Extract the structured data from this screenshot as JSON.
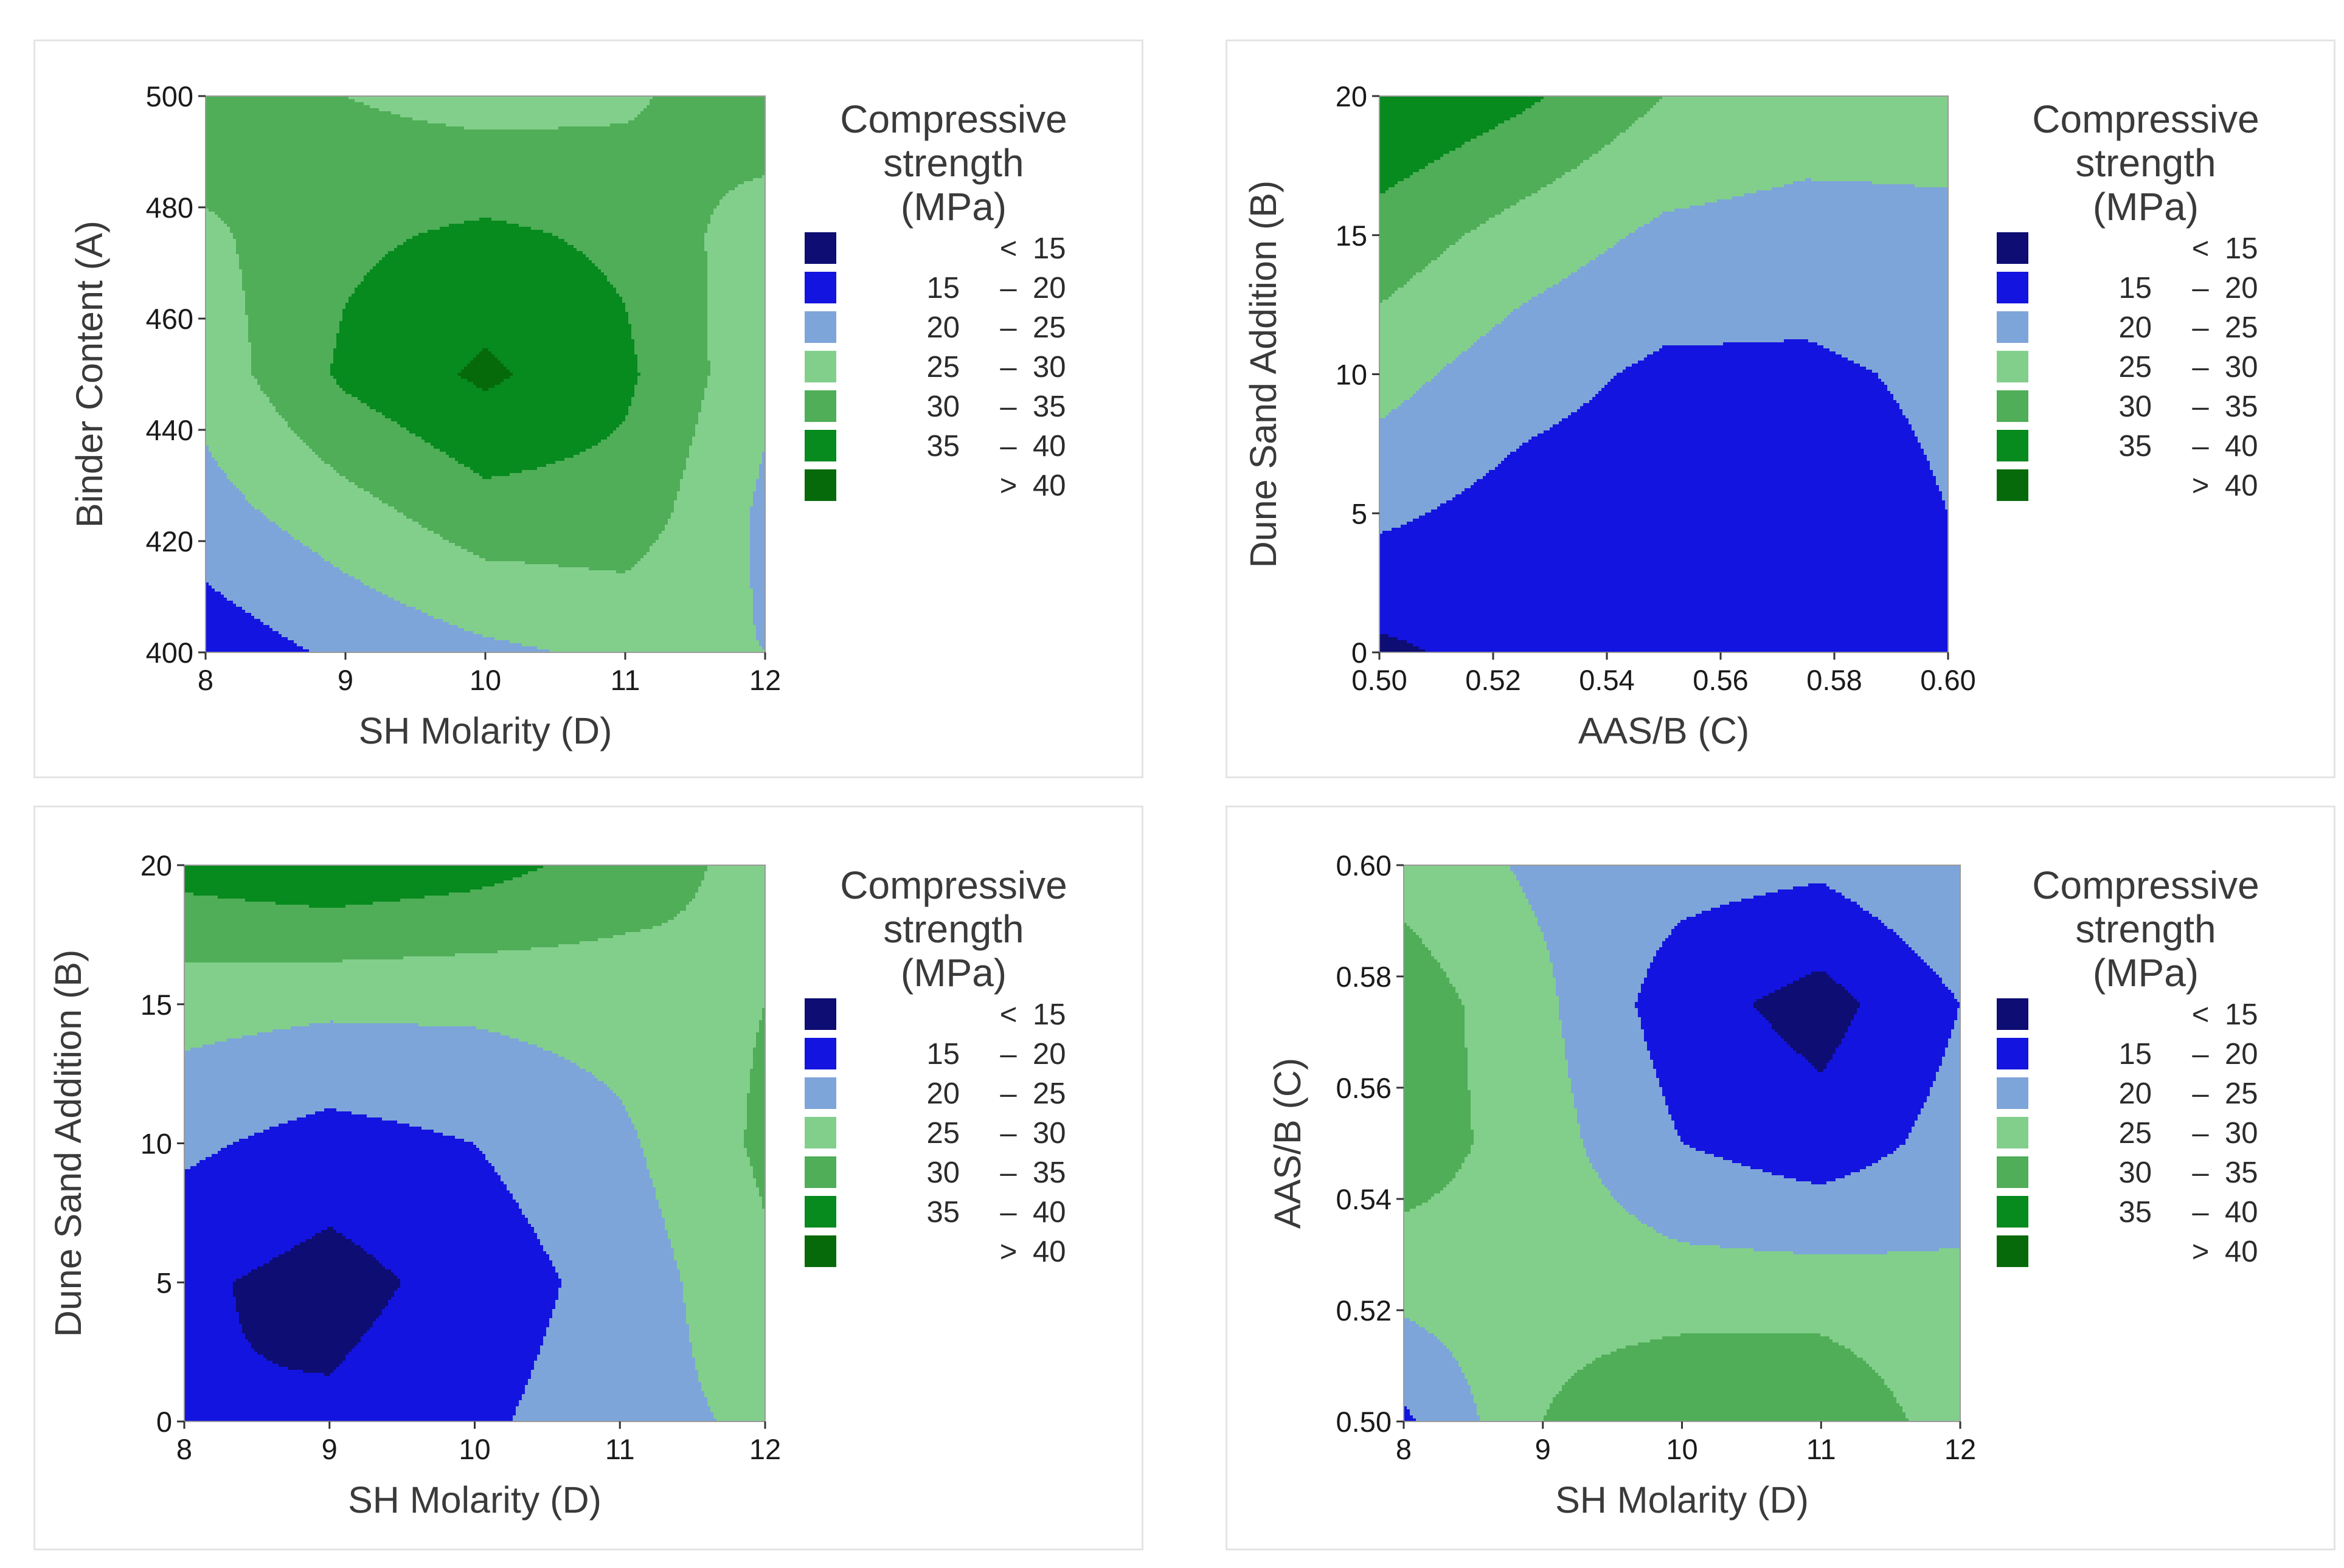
{
  "chart_data": [
    {
      "type": "heatmap",
      "subtype": "contour",
      "xlabel": "SH Molarity (D)",
      "ylabel": "Binder Content (A)",
      "xlim": [
        8,
        12
      ],
      "ylim": [
        400,
        500
      ],
      "x_ticks": [
        "8",
        "9",
        "10",
        "11",
        "12"
      ],
      "y_ticks": [
        "400",
        "420",
        "440",
        "460",
        "480",
        "500"
      ],
      "center_x": 10,
      "center_y": 454,
      "surface": [
        [
          17,
          21,
          24,
          26,
          25
        ],
        [
          23,
          28,
          33,
          33,
          24
        ],
        [
          27,
          36,
          41,
          36,
          26
        ],
        [
          29,
          34,
          36,
          34,
          27
        ],
        [
          34,
          30,
          28,
          29,
          34
        ]
      ],
      "legend": {
        "title": "Compressive strength (MPa)",
        "placement": "right",
        "bins": [
          {
            "from": "<",
            "to": "15",
            "color": "#0d0d73"
          },
          {
            "from": "15",
            "to": "20",
            "color": "#1414e0"
          },
          {
            "from": "20",
            "to": "25",
            "color": "#7da5d9"
          },
          {
            "from": "25",
            "to": "30",
            "color": "#82cf8c"
          },
          {
            "from": "30",
            "to": "35",
            "color": "#4fae57"
          },
          {
            "from": "35",
            "to": "40",
            "color": "#078a1e"
          },
          {
            "from": ">",
            "to": "40",
            "color": "#066a0a"
          }
        ]
      }
    },
    {
      "type": "heatmap",
      "subtype": "contour",
      "xlabel": "AAS/B (C)",
      "ylabel": "Dune Sand Addition (B)",
      "xlim": [
        0.5,
        0.6
      ],
      "ylim": [
        0,
        20
      ],
      "x_ticks": [
        "0.50",
        "0.52",
        "0.54",
        "0.56",
        "0.58",
        "0.60"
      ],
      "y_ticks": [
        "0",
        "5",
        "10",
        "15",
        "20"
      ],
      "center_x": 0.565,
      "center_y": 7,
      "surface": [
        [
          14,
          17,
          19,
          19,
          20
        ],
        [
          21,
          18,
          17,
          17,
          20
        ],
        [
          27,
          22,
          19,
          19,
          21
        ],
        [
          33,
          28,
          24,
          23,
          24
        ],
        [
          40,
          36,
          30,
          28,
          27
        ]
      ],
      "legend": {
        "title": "Compressive strength (MPa)",
        "placement": "right",
        "bins": [
          {
            "from": "<",
            "to": "15",
            "color": "#0d0d73"
          },
          {
            "from": "15",
            "to": "20",
            "color": "#1414e0"
          },
          {
            "from": "20",
            "to": "25",
            "color": "#7da5d9"
          },
          {
            "from": "25",
            "to": "30",
            "color": "#82cf8c"
          },
          {
            "from": "30",
            "to": "35",
            "color": "#4fae57"
          },
          {
            "from": "35",
            "to": "40",
            "color": "#078a1e"
          },
          {
            "from": ">",
            "to": "40",
            "color": "#066a0a"
          }
        ]
      }
    },
    {
      "type": "heatmap",
      "subtype": "contour",
      "xlabel": "SH Molarity (D)",
      "ylabel": "Dune Sand Addition (B)",
      "xlim": [
        8,
        12
      ],
      "ylim": [
        0,
        20
      ],
      "x_ticks": [
        "8",
        "9",
        "10",
        "11",
        "12"
      ],
      "y_ticks": [
        "0",
        "5",
        "10",
        "15",
        "20"
      ],
      "center_x": 9.5,
      "center_y": 5,
      "surface": [
        [
          15,
          16,
          19,
          23,
          26
        ],
        [
          16,
          13,
          17,
          22,
          29
        ],
        [
          21,
          18,
          20,
          24,
          31
        ],
        [
          27,
          26,
          26,
          27,
          30
        ],
        [
          37,
          39,
          37,
          33,
          28
        ]
      ],
      "legend": {
        "title": "Compressive strength (MPa)",
        "placement": "right",
        "bins": [
          {
            "from": "<",
            "to": "15",
            "color": "#0d0d73"
          },
          {
            "from": "15",
            "to": "20",
            "color": "#1414e0"
          },
          {
            "from": "20",
            "to": "25",
            "color": "#7da5d9"
          },
          {
            "from": "25",
            "to": "30",
            "color": "#82cf8c"
          },
          {
            "from": "30",
            "to": "35",
            "color": "#4fae57"
          },
          {
            "from": "35",
            "to": "40",
            "color": "#078a1e"
          },
          {
            "from": ">",
            "to": "40",
            "color": "#066a0a"
          }
        ]
      }
    },
    {
      "type": "heatmap",
      "subtype": "contour",
      "xlabel": "SH Molarity (D)",
      "ylabel": "AAS/B (C)",
      "xlim": [
        8,
        12
      ],
      "ylim": [
        0.5,
        0.6
      ],
      "x_ticks": [
        "8",
        "9",
        "10",
        "11",
        "12"
      ],
      "y_ticks": [
        "0.50",
        "0.52",
        "0.54",
        "0.56",
        "0.58",
        "0.60"
      ],
      "center_x": 10.55,
      "center_y": 0.566,
      "surface": [
        [
          19,
          30,
          35,
          35,
          27
        ],
        [
          27,
          28,
          27,
          27,
          26
        ],
        [
          33,
          27,
          20,
          17,
          22
        ],
        [
          33,
          26,
          17,
          13,
          20
        ],
        [
          28,
          24,
          22,
          21,
          25
        ]
      ],
      "legend": {
        "title": "Compressive strength (MPa)",
        "placement": "right",
        "bins": [
          {
            "from": "<",
            "to": "15",
            "color": "#0d0d73"
          },
          {
            "from": "15",
            "to": "20",
            "color": "#1414e0"
          },
          {
            "from": "20",
            "to": "25",
            "color": "#7da5d9"
          },
          {
            "from": "25",
            "to": "30",
            "color": "#82cf8c"
          },
          {
            "from": "30",
            "to": "35",
            "color": "#4fae57"
          },
          {
            "from": "35",
            "to": "40",
            "color": "#078a1e"
          },
          {
            "from": ">",
            "to": "40",
            "color": "#066a0a"
          }
        ]
      }
    }
  ]
}
